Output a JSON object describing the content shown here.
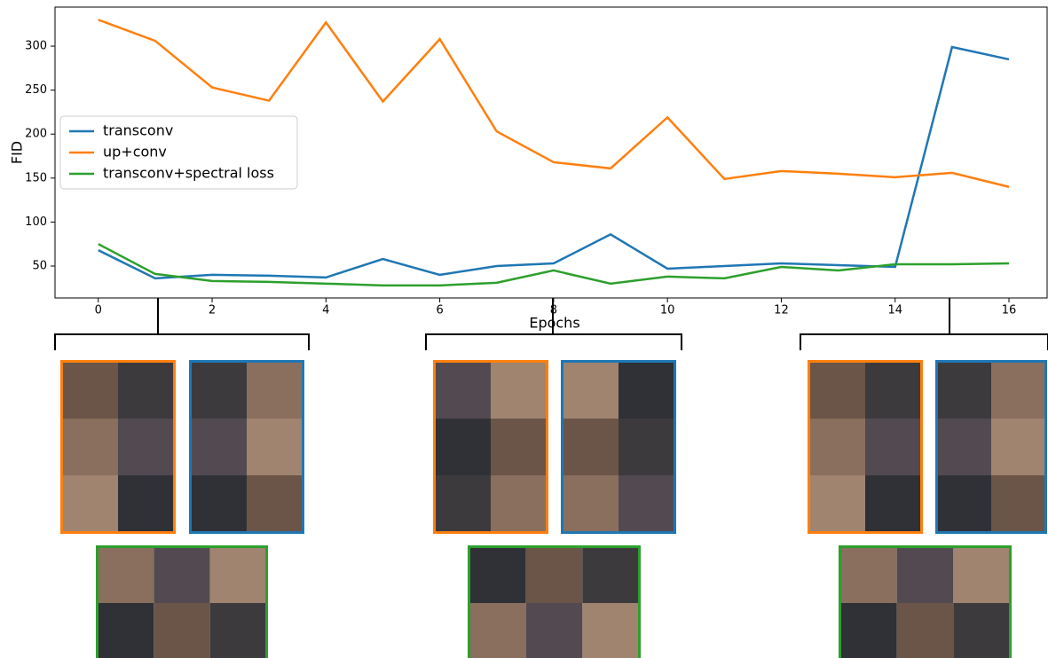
{
  "chart_data": {
    "type": "line",
    "x_label": "Epochs",
    "y_label": "FID",
    "x": [
      0,
      1,
      2,
      3,
      4,
      5,
      6,
      7,
      8,
      9,
      10,
      11,
      12,
      13,
      14,
      15,
      16
    ],
    "series": [
      {
        "name": "transconv",
        "color": "#1f77b4",
        "values": [
          68,
          36,
          40,
          39,
          37,
          58,
          40,
          50,
          53,
          86,
          47,
          50,
          53,
          51,
          49,
          299,
          285
        ]
      },
      {
        "name": "up+conv",
        "color": "#ff7f0e",
        "values": [
          330,
          306,
          253,
          238,
          327,
          237,
          308,
          203,
          168,
          161,
          219,
          149,
          158,
          155,
          151,
          156,
          140
        ]
      },
      {
        "name": "transconv+spectral loss",
        "color": "#2ca02c",
        "values": [
          75,
          41,
          33,
          32,
          30,
          28,
          28,
          31,
          45,
          30,
          38,
          36,
          49,
          45,
          52,
          52,
          53
        ]
      }
    ],
    "xlim": [
      -0.76,
      16.67
    ],
    "ylim": [
      13.7,
      344.4
    ],
    "xticks": [
      0,
      2,
      4,
      6,
      8,
      10,
      12,
      14,
      16
    ],
    "yticks": [
      50,
      100,
      150,
      200,
      250,
      300
    ],
    "legend": "center left"
  }
}
